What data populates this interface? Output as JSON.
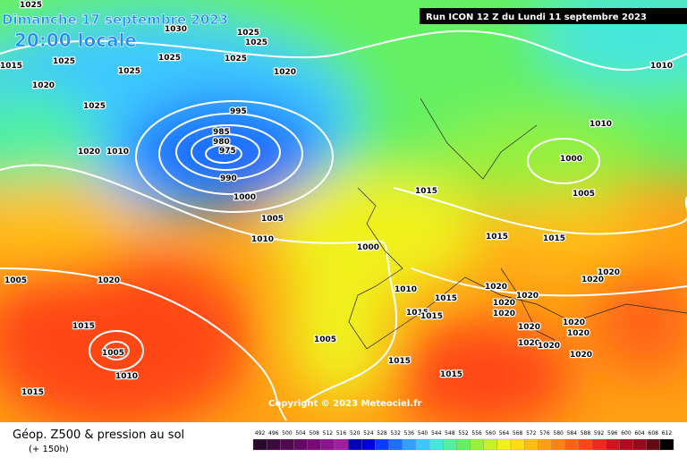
{
  "header": {
    "date": "Dimanche 17 septembre 2023",
    "time": "20:00 locale",
    "run": "Run ICON 12 Z du Lundi 11 septembre 2023"
  },
  "copyright": "Copyright © 2023 Meteociel.fr",
  "footer": {
    "title": "Géop. Z500 & pression au sol",
    "lead": "(+ 150h)"
  },
  "isobars": [
    "1025",
    "1030",
    "1025",
    "1025",
    "1025",
    "1025",
    "1025",
    "1025",
    "1015",
    "1020",
    "1025",
    "1020",
    "1010",
    "995",
    "985",
    "980",
    "975",
    "990",
    "1000",
    "1005",
    "1010",
    "1020",
    "1010",
    "1010",
    "1000",
    "1005",
    "1015",
    "1015",
    "1015",
    "1000",
    "1020",
    "1005",
    "1020",
    "1020",
    "1020",
    "1020",
    "1020",
    "1020",
    "1010",
    "1015",
    "1015",
    "1015",
    "1015",
    "1005",
    "1005",
    "1010",
    "1020",
    "1020",
    "1020",
    "1020",
    "1020",
    "1020",
    "1015",
    "1015",
    "1015"
  ],
  "scale": {
    "values": [
      492,
      496,
      500,
      504,
      508,
      512,
      516,
      520,
      524,
      528,
      532,
      536,
      540,
      544,
      548,
      552,
      556,
      560,
      564,
      568,
      572,
      576,
      580,
      584,
      588,
      592,
      596,
      600,
      604,
      608,
      612
    ],
    "colors": [
      "#2a0a2a",
      "#3c0a3c",
      "#500a50",
      "#640a64",
      "#780a78",
      "#8c148c",
      "#a01ea0",
      "#0000b4",
      "#0000dc",
      "#0a3cff",
      "#1e6eff",
      "#32a0ff",
      "#3cc8ff",
      "#46e6dc",
      "#50f0a0",
      "#64f064",
      "#96f03c",
      "#c8f028",
      "#f0f01e",
      "#ffdc14",
      "#ffbe14",
      "#ffa014",
      "#ff8214",
      "#ff6414",
      "#ff4614",
      "#f0281e",
      "#d2141e",
      "#b40a1e",
      "#960a1e",
      "#640a14",
      "#000000"
    ]
  }
}
